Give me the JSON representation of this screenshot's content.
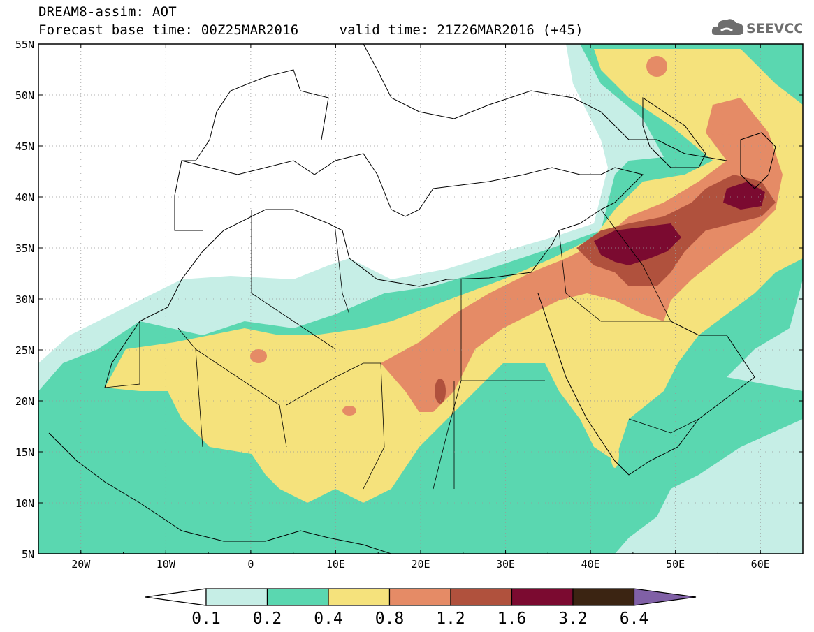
{
  "header": {
    "title_line1": "DREAM8-assim: AOT",
    "base_time_label": "Forecast base time: 00Z25MAR2016",
    "valid_time_label": "valid time: 21Z26MAR2016 (+45)"
  },
  "logo": {
    "text": "SEEVCCC",
    "icon": "cloud-icon"
  },
  "map": {
    "lon_range": [
      -25,
      65
    ],
    "lat_range": [
      5,
      55
    ],
    "lat_ticks": [
      "55N",
      "50N",
      "45N",
      "40N",
      "35N",
      "30N",
      "25N",
      "20N",
      "15N",
      "10N",
      "5N"
    ],
    "lon_ticks": [
      "20W",
      "10W",
      "0",
      "10E",
      "20E",
      "30E",
      "40E",
      "50E",
      "60E"
    ]
  },
  "colorbar": {
    "labels": [
      "0.1",
      "0.2",
      "0.4",
      "0.8",
      "1.2",
      "1.6",
      "3.2",
      "6.4"
    ],
    "colors": [
      "#ffffff",
      "#c6eee6",
      "#5ad7b0",
      "#f5e27c",
      "#e58b66",
      "#b0513d",
      "#7b0a30",
      "#3b2412",
      "#8060a6"
    ]
  }
}
